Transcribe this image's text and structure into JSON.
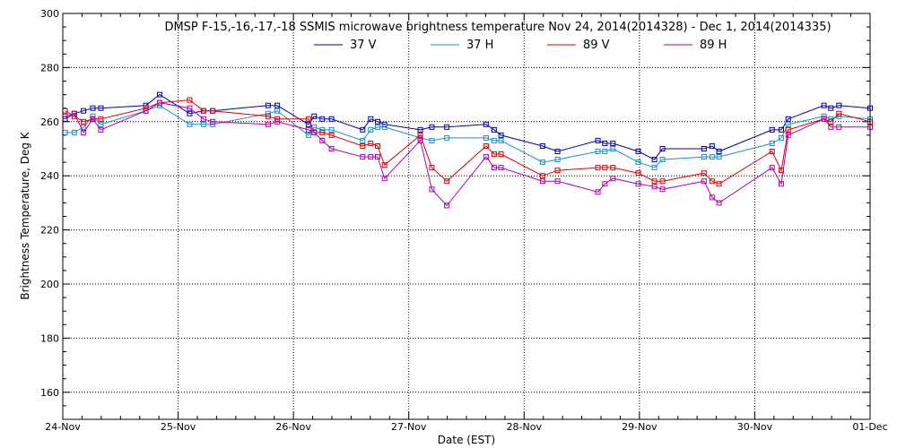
{
  "chart_data": {
    "type": "line",
    "title": "DMSP F-15,-16,-17,-18 SSMIS microwave brightness temperature Nov 24, 2014(2014328) - Dec  1, 2014(2014335)",
    "xlabel": "Date (EST)",
    "ylabel": "Brightness Temperature, Deg K",
    "xlim": [
      0,
      7
    ],
    "ylim": [
      150,
      300
    ],
    "x_ticks": [
      {
        "value": 0,
        "label": "24-Nov"
      },
      {
        "value": 1,
        "label": "25-Nov"
      },
      {
        "value": 2,
        "label": "26-Nov"
      },
      {
        "value": 3,
        "label": "27-Nov"
      },
      {
        "value": 4,
        "label": "28-Nov"
      },
      {
        "value": 5,
        "label": "29-Nov"
      },
      {
        "value": 6,
        "label": "30-Nov"
      },
      {
        "value": 7,
        "label": "01-Dec"
      }
    ],
    "y_ticks": [
      160,
      180,
      200,
      220,
      240,
      260,
      280,
      300
    ],
    "grid": true,
    "legend_position": "top-center",
    "series": [
      {
        "name": "37 V",
        "color": "#0000aa",
        "points": [
          [
            0.02,
            261
          ],
          [
            0.1,
            263
          ],
          [
            0.18,
            264
          ],
          [
            0.26,
            265
          ],
          [
            0.33,
            265
          ],
          [
            0.72,
            266
          ],
          [
            0.84,
            270
          ],
          [
            1.1,
            263
          ],
          [
            1.22,
            264
          ],
          [
            1.3,
            264
          ],
          [
            1.78,
            266
          ],
          [
            1.86,
            266
          ],
          [
            2.13,
            259
          ],
          [
            2.18,
            262
          ],
          [
            2.25,
            261
          ],
          [
            2.33,
            261
          ],
          [
            2.6,
            257
          ],
          [
            2.67,
            261
          ],
          [
            2.73,
            260
          ],
          [
            2.79,
            259
          ],
          [
            3.1,
            257
          ],
          [
            3.2,
            258
          ],
          [
            3.33,
            258
          ],
          [
            3.67,
            259
          ],
          [
            3.74,
            257
          ],
          [
            3.8,
            255
          ],
          [
            4.16,
            251
          ],
          [
            4.29,
            249
          ],
          [
            4.64,
            253
          ],
          [
            4.7,
            252
          ],
          [
            4.77,
            252
          ],
          [
            4.99,
            249
          ],
          [
            5.13,
            246
          ],
          [
            5.2,
            250
          ],
          [
            5.56,
            250
          ],
          [
            5.63,
            251
          ],
          [
            5.69,
            249
          ],
          [
            6.15,
            257
          ],
          [
            6.23,
            257
          ],
          [
            6.29,
            261
          ],
          [
            6.6,
            266
          ],
          [
            6.66,
            265
          ],
          [
            6.73,
            266
          ],
          [
            7.0,
            265
          ]
        ]
      },
      {
        "name": "37 H",
        "color": "#1a90c8",
        "points": [
          [
            0.02,
            256
          ],
          [
            0.1,
            256
          ],
          [
            0.18,
            258
          ],
          [
            0.26,
            262
          ],
          [
            0.33,
            259
          ],
          [
            0.72,
            264
          ],
          [
            0.84,
            266
          ],
          [
            1.1,
            259
          ],
          [
            1.22,
            259
          ],
          [
            1.3,
            259
          ],
          [
            1.78,
            263
          ],
          [
            1.86,
            264
          ],
          [
            2.13,
            255
          ],
          [
            2.18,
            258
          ],
          [
            2.25,
            257
          ],
          [
            2.33,
            257
          ],
          [
            2.6,
            253
          ],
          [
            2.67,
            257
          ],
          [
            2.73,
            258
          ],
          [
            2.79,
            258
          ],
          [
            3.1,
            254
          ],
          [
            3.2,
            253
          ],
          [
            3.33,
            254
          ],
          [
            3.67,
            254
          ],
          [
            3.74,
            253
          ],
          [
            3.8,
            253
          ],
          [
            4.16,
            245
          ],
          [
            4.29,
            246
          ],
          [
            4.64,
            249
          ],
          [
            4.7,
            249
          ],
          [
            4.77,
            250
          ],
          [
            4.99,
            245
          ],
          [
            5.13,
            243
          ],
          [
            5.2,
            246
          ],
          [
            5.56,
            247
          ],
          [
            5.63,
            247
          ],
          [
            5.69,
            247
          ],
          [
            6.15,
            252
          ],
          [
            6.23,
            254
          ],
          [
            6.29,
            259
          ],
          [
            6.6,
            262
          ],
          [
            6.66,
            261
          ],
          [
            6.73,
            262
          ],
          [
            7.0,
            261
          ]
        ]
      },
      {
        "name": "89 V",
        "color": "#dd0000",
        "points": [
          [
            0.02,
            264
          ],
          [
            0.1,
            262
          ],
          [
            0.18,
            260
          ],
          [
            0.26,
            261
          ],
          [
            0.33,
            261
          ],
          [
            0.72,
            265
          ],
          [
            0.84,
            267
          ],
          [
            1.1,
            268
          ],
          [
            1.22,
            264
          ],
          [
            1.3,
            264
          ],
          [
            1.78,
            262
          ],
          [
            1.86,
            261
          ],
          [
            2.13,
            261
          ],
          [
            2.18,
            256
          ],
          [
            2.25,
            256
          ],
          [
            2.33,
            255
          ],
          [
            2.6,
            251
          ],
          [
            2.67,
            252
          ],
          [
            2.73,
            251
          ],
          [
            2.79,
            244
          ],
          [
            3.1,
            255
          ],
          [
            3.2,
            243
          ],
          [
            3.33,
            238
          ],
          [
            3.67,
            251
          ],
          [
            3.74,
            248
          ],
          [
            3.8,
            248
          ],
          [
            4.16,
            240
          ],
          [
            4.29,
            242
          ],
          [
            4.64,
            243
          ],
          [
            4.7,
            243
          ],
          [
            4.77,
            243
          ],
          [
            4.99,
            241
          ],
          [
            5.13,
            238
          ],
          [
            5.2,
            238
          ],
          [
            5.56,
            241
          ],
          [
            5.63,
            238
          ],
          [
            5.69,
            237
          ],
          [
            6.15,
            249
          ],
          [
            6.23,
            242
          ],
          [
            6.29,
            257
          ],
          [
            6.6,
            261
          ],
          [
            6.66,
            260
          ],
          [
            6.73,
            263
          ],
          [
            7.0,
            260
          ]
        ]
      },
      {
        "name": "89 H",
        "color": "#b000b0",
        "points": [
          [
            0.02,
            262
          ],
          [
            0.1,
            263
          ],
          [
            0.18,
            256
          ],
          [
            0.26,
            261
          ],
          [
            0.33,
            257
          ],
          [
            0.72,
            264
          ],
          [
            0.84,
            267
          ],
          [
            1.1,
            265
          ],
          [
            1.22,
            261
          ],
          [
            1.3,
            260
          ],
          [
            1.78,
            259
          ],
          [
            1.86,
            260
          ],
          [
            2.13,
            257
          ],
          [
            2.18,
            256
          ],
          [
            2.25,
            253
          ],
          [
            2.33,
            250
          ],
          [
            2.6,
            247
          ],
          [
            2.67,
            247
          ],
          [
            2.73,
            247
          ],
          [
            2.79,
            239
          ],
          [
            3.1,
            253
          ],
          [
            3.2,
            235
          ],
          [
            3.33,
            229
          ],
          [
            3.67,
            247
          ],
          [
            3.74,
            243
          ],
          [
            3.8,
            243
          ],
          [
            4.16,
            238
          ],
          [
            4.29,
            238
          ],
          [
            4.64,
            234
          ],
          [
            4.7,
            237
          ],
          [
            4.77,
            239
          ],
          [
            4.99,
            237
          ],
          [
            5.13,
            236
          ],
          [
            5.2,
            235
          ],
          [
            5.56,
            238
          ],
          [
            5.63,
            232
          ],
          [
            5.69,
            230
          ],
          [
            6.15,
            243
          ],
          [
            6.23,
            237
          ],
          [
            6.29,
            255
          ],
          [
            6.6,
            261
          ],
          [
            6.66,
            258
          ],
          [
            6.73,
            258
          ],
          [
            7.0,
            258
          ]
        ]
      }
    ]
  }
}
